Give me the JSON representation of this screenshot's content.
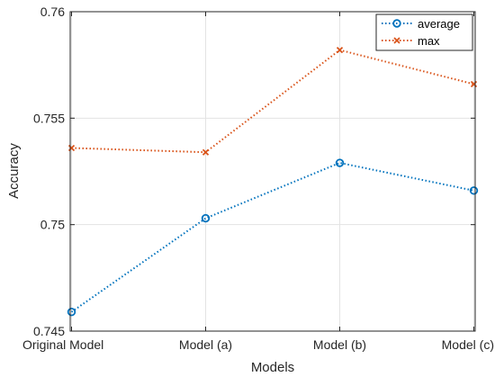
{
  "chart_data": {
    "type": "line",
    "categories": [
      "Original Model",
      "Model (a)",
      "Model (b)",
      "Model (c)"
    ],
    "series": [
      {
        "name": "average",
        "values": [
          0.7459,
          0.7503,
          0.7529,
          0.7516
        ],
        "color": "#0072BD",
        "marker": "circle",
        "line_style": "dotted"
      },
      {
        "name": "max",
        "values": [
          0.7536,
          0.7534,
          0.7582,
          0.7566
        ],
        "color": "#D95319",
        "marker": "x",
        "line_style": "dotted"
      }
    ],
    "xlabel": "Models",
    "ylabel": "Accuracy",
    "ylim": [
      0.745,
      0.76
    ],
    "yticks": [
      0.745,
      0.75,
      0.755,
      0.76
    ],
    "ytick_labels": [
      "0.745",
      "0.75",
      "0.755",
      "0.76"
    ],
    "grid": true,
    "legend_position": "top-right"
  }
}
